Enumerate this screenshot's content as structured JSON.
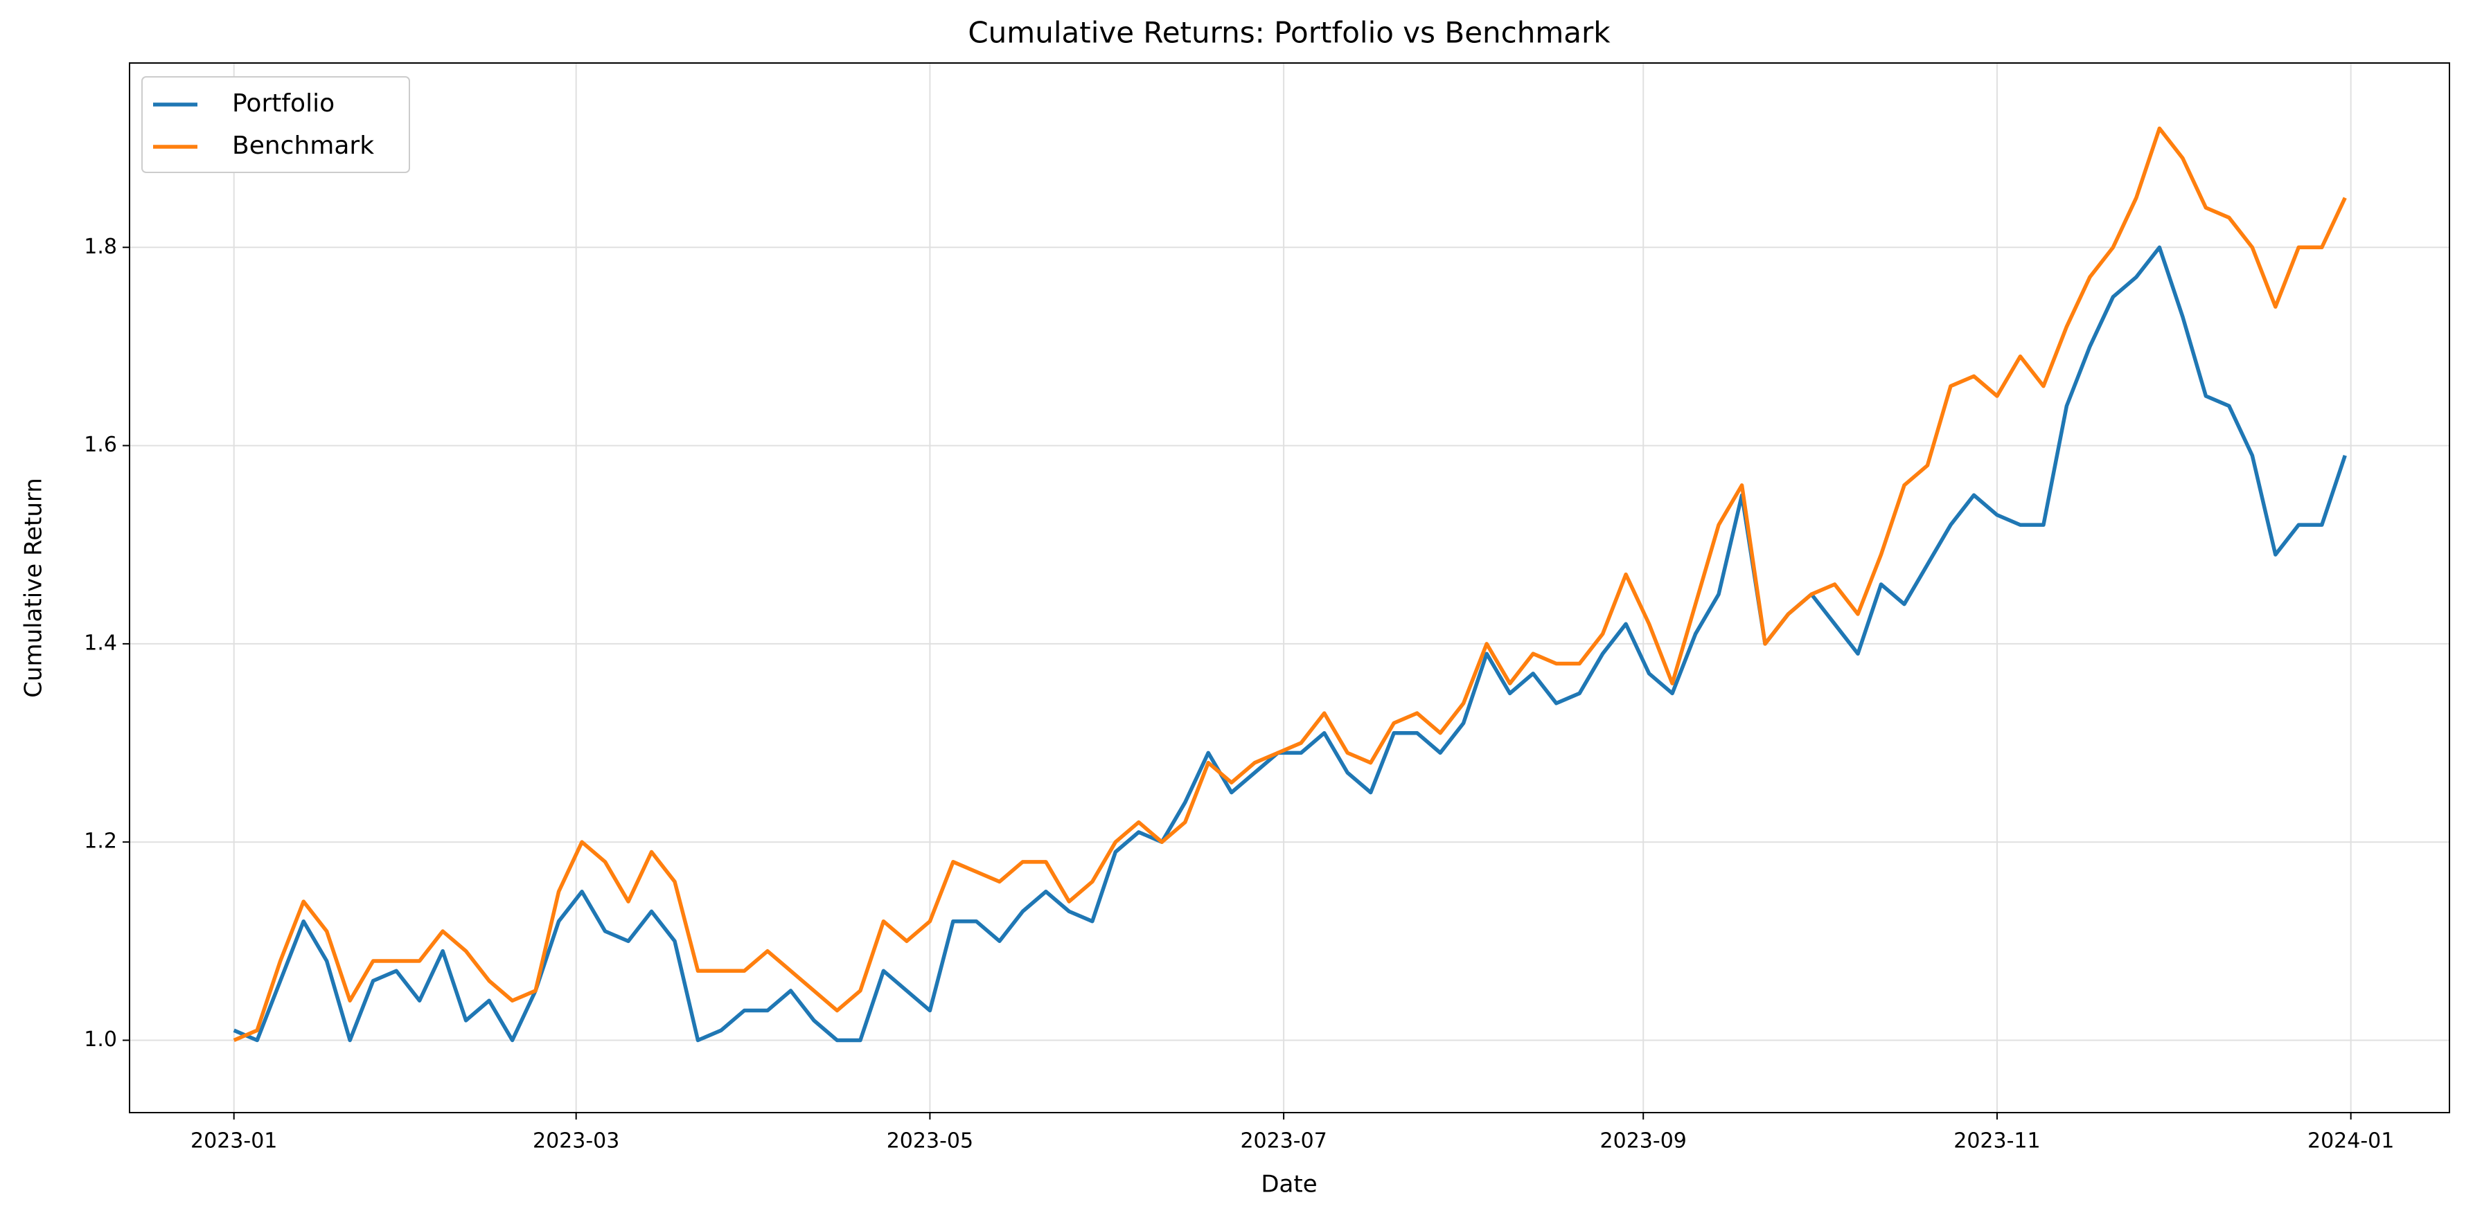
{
  "chart_data": {
    "type": "line",
    "title": "Cumulative Returns: Portfolio vs Benchmark",
    "x_label": "Date",
    "y_label": "Cumulative Return",
    "x": [
      0,
      4,
      8,
      12,
      16,
      20,
      24,
      28,
      32,
      36,
      40,
      44,
      48,
      52,
      56,
      60,
      64,
      68,
      72,
      76,
      80,
      84,
      88,
      92,
      96,
      100,
      104,
      108,
      112,
      116,
      120,
      124,
      128,
      132,
      136,
      140,
      144,
      148,
      152,
      156,
      160,
      164,
      168,
      172,
      176,
      180,
      184,
      188,
      192,
      196,
      200,
      204,
      208,
      212,
      216,
      220,
      224,
      228,
      232,
      236,
      240,
      244,
      248,
      252,
      256,
      260,
      264,
      268,
      272,
      276,
      280,
      284,
      288,
      292,
      296,
      300,
      304,
      308,
      312,
      316,
      320,
      324,
      328,
      332,
      336,
      340,
      344,
      348,
      352,
      356,
      360,
      364
    ],
    "series": [
      {
        "name": "Portfolio",
        "color": "#1f77b4",
        "values": [
          1.01,
          1.0,
          1.06,
          1.12,
          1.08,
          1.0,
          1.06,
          1.07,
          1.04,
          1.09,
          1.02,
          1.04,
          1.0,
          1.05,
          1.12,
          1.15,
          1.11,
          1.1,
          1.13,
          1.1,
          1.0,
          1.01,
          1.03,
          1.03,
          1.05,
          1.02,
          1.0,
          1.0,
          1.07,
          1.05,
          1.03,
          1.12,
          1.12,
          1.1,
          1.13,
          1.15,
          1.13,
          1.12,
          1.19,
          1.21,
          1.2,
          1.24,
          1.29,
          1.25,
          1.27,
          1.29,
          1.29,
          1.31,
          1.27,
          1.25,
          1.31,
          1.31,
          1.29,
          1.32,
          1.39,
          1.35,
          1.37,
          1.34,
          1.35,
          1.39,
          1.42,
          1.37,
          1.35,
          1.41,
          1.45,
          1.55,
          1.4,
          1.43,
          1.45,
          1.42,
          1.39,
          1.46,
          1.44,
          1.48,
          1.52,
          1.55,
          1.53,
          1.52,
          1.52,
          1.64,
          1.7,
          1.75,
          1.77,
          1.8,
          1.73,
          1.65,
          1.64,
          1.59,
          1.49,
          1.52,
          1.52,
          1.59
        ]
      },
      {
        "name": "Benchmark",
        "color": "#ff7f0e",
        "values": [
          1.0,
          1.01,
          1.08,
          1.14,
          1.11,
          1.04,
          1.08,
          1.08,
          1.08,
          1.11,
          1.09,
          1.06,
          1.04,
          1.05,
          1.15,
          1.2,
          1.18,
          1.14,
          1.19,
          1.16,
          1.07,
          1.07,
          1.07,
          1.09,
          1.07,
          1.05,
          1.03,
          1.05,
          1.12,
          1.1,
          1.12,
          1.18,
          1.17,
          1.16,
          1.18,
          1.18,
          1.14,
          1.16,
          1.2,
          1.22,
          1.2,
          1.22,
          1.28,
          1.26,
          1.28,
          1.29,
          1.3,
          1.33,
          1.29,
          1.28,
          1.32,
          1.33,
          1.31,
          1.34,
          1.4,
          1.36,
          1.39,
          1.38,
          1.38,
          1.41,
          1.47,
          1.42,
          1.36,
          1.44,
          1.52,
          1.56,
          1.4,
          1.43,
          1.45,
          1.46,
          1.43,
          1.49,
          1.56,
          1.58,
          1.66,
          1.67,
          1.65,
          1.69,
          1.66,
          1.72,
          1.77,
          1.8,
          1.85,
          1.92,
          1.89,
          1.84,
          1.83,
          1.8,
          1.74,
          1.8,
          1.8,
          1.85
        ]
      }
    ],
    "xlim": [
      -18,
      382
    ],
    "xticks": [
      {
        "value": 0,
        "label": "2023-01"
      },
      {
        "value": 59,
        "label": "2023-03"
      },
      {
        "value": 120,
        "label": "2023-05"
      },
      {
        "value": 181,
        "label": "2023-07"
      },
      {
        "value": 243,
        "label": "2023-09"
      },
      {
        "value": 304,
        "label": "2023-11"
      },
      {
        "value": 365,
        "label": "2024-01"
      }
    ],
    "ylim": [
      0.927,
      1.986
    ],
    "yticks": [
      {
        "value": 1,
        "label": "1.0"
      },
      {
        "value": 1.2,
        "label": "1.2"
      },
      {
        "value": 1.4,
        "label": "1.4"
      },
      {
        "value": 1.6,
        "label": "1.6"
      },
      {
        "value": 1.8,
        "label": "1.8"
      }
    ],
    "grid": true,
    "legend": "upper left"
  }
}
